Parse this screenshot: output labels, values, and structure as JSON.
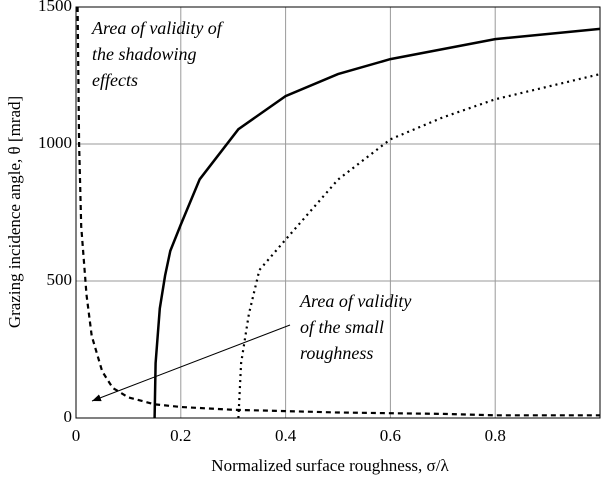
{
  "chart_data": {
    "type": "line",
    "x_label": "Normalized surface roughness, σ/λ",
    "y_label": "Grazing incidence angle, θ [mrad]",
    "annotations": [
      {
        "lines": [
          "Area of validity of",
          "the shadowing",
          "effects"
        ]
      },
      {
        "lines": [
          "Area of validity",
          "of the small",
          "roughness"
        ]
      }
    ],
    "xlim": [
      0,
      1
    ],
    "ylim": [
      0,
      1500
    ],
    "xticks": [
      0,
      0.2,
      0.4,
      0.6,
      0.8
    ],
    "yticks": [
      0,
      500,
      1000,
      1500
    ],
    "grid": true,
    "series": [
      {
        "color": "#000000",
        "style": "solid",
        "x": [
          0.15,
          0.152,
          0.16,
          0.17,
          0.18,
          0.2,
          0.236,
          0.31,
          0.4,
          0.5,
          0.6,
          0.8,
          1.0
        ],
        "values": [
          0,
          200,
          400,
          520,
          610,
          706,
          871,
          1054,
          1175,
          1255,
          1310,
          1383,
          1420
        ]
      },
      {
        "color": "#000000",
        "style": "dotted",
        "x": [
          0.31,
          0.315,
          0.33,
          0.35,
          0.4,
          0.5,
          0.6,
          0.7,
          0.8,
          1.0
        ],
        "values": [
          0,
          200,
          380,
          540,
          651,
          870,
          1017,
          1097,
          1163,
          1255
        ]
      },
      {
        "color": "#000000",
        "style": "dashed",
        "x": [
          0.003,
          0.006,
          0.01,
          0.02,
          0.03,
          0.05,
          0.07,
          0.1,
          0.15,
          0.2,
          0.3,
          0.4,
          0.5,
          0.7,
          0.8,
          1.0
        ],
        "values": [
          1500,
          1000,
          700,
          450,
          300,
          170,
          110,
          75,
          50,
          40,
          30,
          25,
          20,
          15,
          10,
          10
        ]
      }
    ]
  }
}
